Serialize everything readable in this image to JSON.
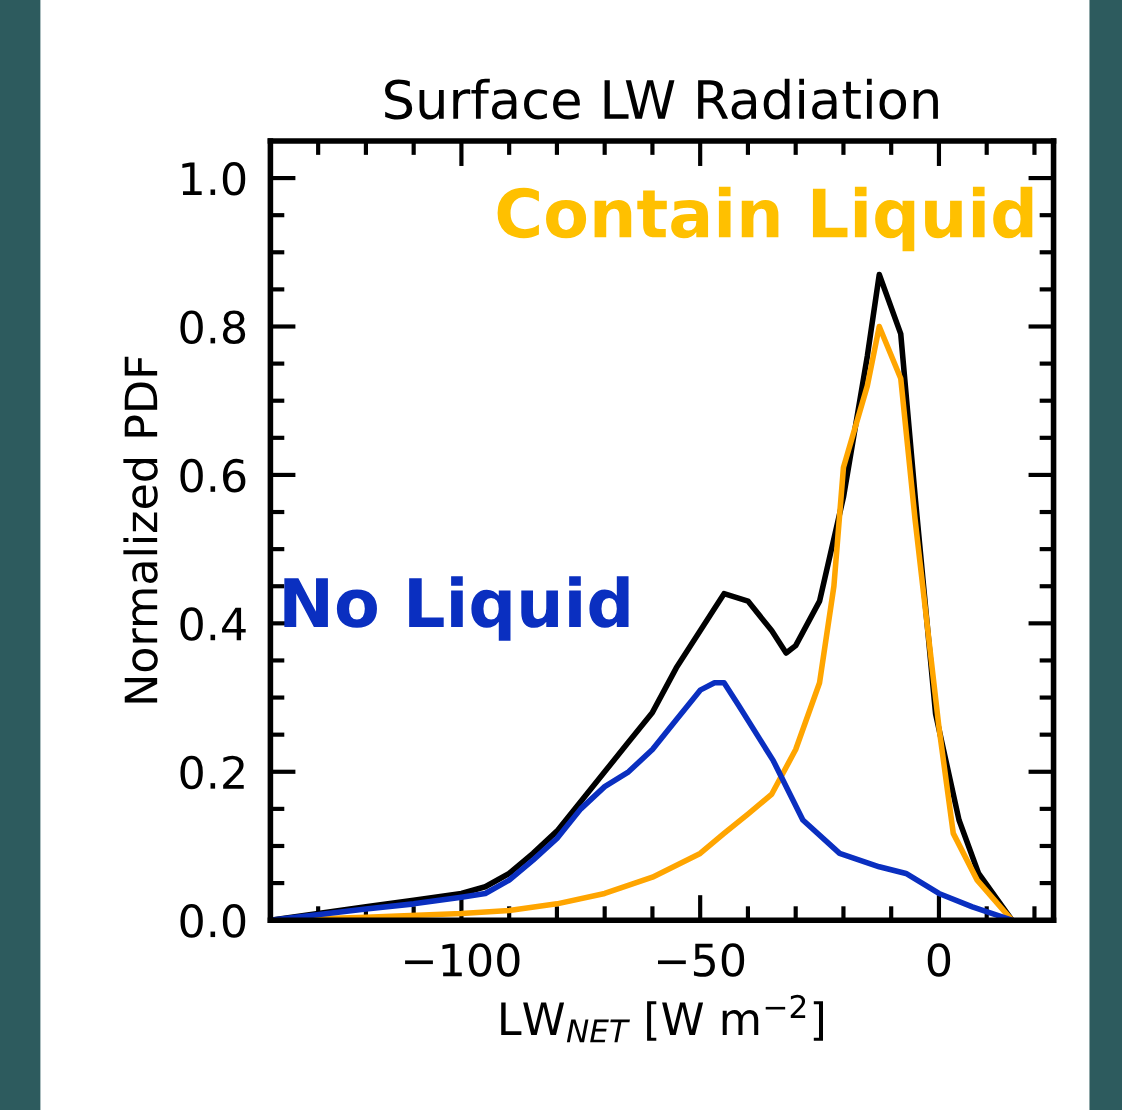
{
  "chart_data": {
    "type": "line",
    "title": "Surface LW Radiation",
    "xlabel": "LW$_{NET}$ [W m$^{−2}$]",
    "ylabel": "Normalized PDF",
    "xlim": [
      -140,
      24
    ],
    "ylim": [
      0,
      1.05
    ],
    "xticks": [
      {
        "value": -130,
        "label": null
      },
      {
        "value": -120,
        "label": null
      },
      {
        "value": -110,
        "label": null
      },
      {
        "value": -100,
        "label": "−100"
      },
      {
        "value": -90,
        "label": null
      },
      {
        "value": -80,
        "label": null
      },
      {
        "value": -70,
        "label": null
      },
      {
        "value": -60,
        "label": null
      },
      {
        "value": -50,
        "label": "−50"
      },
      {
        "value": -40,
        "label": null
      },
      {
        "value": -30,
        "label": null
      },
      {
        "value": -20,
        "label": null
      },
      {
        "value": -10,
        "label": null
      },
      {
        "value": 0,
        "label": "0"
      },
      {
        "value": 10,
        "label": null
      },
      {
        "value": 20,
        "label": null
      }
    ],
    "yticks": [
      {
        "value": 0,
        "label": "0.0"
      },
      {
        "value": 0.05,
        "label": null
      },
      {
        "value": 0.1,
        "label": null
      },
      {
        "value": 0.15,
        "label": null
      },
      {
        "value": 0.2,
        "label": "0.2"
      },
      {
        "value": 0.25,
        "label": null
      },
      {
        "value": 0.3,
        "label": null
      },
      {
        "value": 0.35,
        "label": null
      },
      {
        "value": 0.4,
        "label": "0.4"
      },
      {
        "value": 0.45,
        "label": null
      },
      {
        "value": 0.5,
        "label": null
      },
      {
        "value": 0.55,
        "label": null
      },
      {
        "value": 0.6,
        "label": "0.6"
      },
      {
        "value": 0.65,
        "label": null
      },
      {
        "value": 0.7,
        "label": null
      },
      {
        "value": 0.75,
        "label": null
      },
      {
        "value": 0.8,
        "label": "0.8"
      },
      {
        "value": 0.85,
        "label": null
      },
      {
        "value": 0.9,
        "label": null
      },
      {
        "value": 0.95,
        "label": null
      },
      {
        "value": 1.0,
        "label": "1.0"
      }
    ],
    "grid": false,
    "legend": false,
    "marker": "none",
    "line_style": "solid",
    "series": [
      {
        "color": "#000000",
        "x": [
          -140,
          -120,
          -110,
          -100,
          -95,
          -90,
          -85,
          -80,
          -75,
          -70,
          -65,
          -60,
          -55,
          -50,
          -47,
          -45,
          -40,
          -35,
          -32,
          -30,
          -25,
          -20,
          -15,
          -12.5,
          -8,
          -4.9,
          -0.7,
          4.2,
          8.3,
          15.3
        ],
        "values": [
          0,
          0.018,
          0.027,
          0.036,
          0.045,
          0.063,
          0.09,
          0.12,
          0.16,
          0.2,
          0.24,
          0.28,
          0.34,
          0.39,
          0.42,
          0.44,
          0.43,
          0.39,
          0.36,
          0.37,
          0.43,
          0.57,
          0.76,
          0.87,
          0.79,
          0.565,
          0.278,
          0.135,
          0.063,
          0
        ]
      },
      {
        "name": "Contain Liquid",
        "color": "#ffa500",
        "x": [
          -140,
          -120,
          -100,
          -90,
          -80,
          -70,
          -60,
          -50,
          -45,
          -40,
          -35,
          -30,
          -25,
          -22,
          -20,
          -15,
          -12.5,
          -8,
          -5,
          0,
          3,
          8,
          15.3
        ],
        "values": [
          0,
          0.004,
          0.009,
          0.013,
          0.022,
          0.036,
          0.058,
          0.09,
          0.117,
          0.143,
          0.17,
          0.23,
          0.32,
          0.45,
          0.61,
          0.72,
          0.8,
          0.73,
          0.54,
          0.26,
          0.117,
          0.054,
          0
        ]
      },
      {
        "name": "No Liquid",
        "color": "#0a2fc0",
        "x": [
          -140,
          -120,
          -110,
          -100,
          -95,
          -90,
          -85,
          -80,
          -75,
          -70,
          -65,
          -60,
          -55,
          -50,
          -47,
          -45,
          -42,
          -34.7,
          -28.5,
          -20.8,
          -12.5,
          -6.9,
          0,
          7,
          15.3
        ],
        "values": [
          0,
          0.015,
          0.022,
          0.031,
          0.036,
          0.054,
          0.081,
          0.11,
          0.15,
          0.18,
          0.2,
          0.23,
          0.27,
          0.31,
          0.32,
          0.32,
          0.29,
          0.215,
          0.135,
          0.09,
          0.072,
          0.063,
          0.036,
          0.018,
          0
        ]
      }
    ]
  }
}
